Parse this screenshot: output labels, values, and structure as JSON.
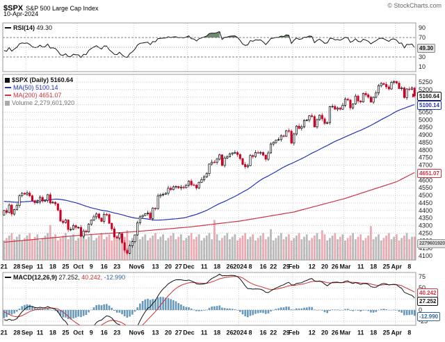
{
  "header": {
    "symbol": "$SPX",
    "name": "S&P 500 Large Cap Index",
    "date": "10-Apr-2024",
    "credit": "© StockCharts.com"
  },
  "rsi_panel": {
    "label": "RSI(14)",
    "value": "49.30",
    "badge": "49.30",
    "axis": [
      90,
      70,
      50,
      30,
      10
    ]
  },
  "main_panel": {
    "legend": {
      "symbol_label": "$SPX (Daily)",
      "symbol_value": "5160.64",
      "ma50_label": "MA(50)",
      "ma50_value": "5100.14",
      "ma200_label": "MA(200)",
      "ma200_value": "4651.07",
      "volume_label": "Volume",
      "volume_value": "2,279,601,920"
    },
    "badges": {
      "close": "5160.64",
      "ma50": "5100.14",
      "ma200": "4651.07",
      "volume": "2279601920"
    },
    "axis": [
      5250,
      5200,
      5150,
      5100,
      5050,
      5000,
      4950,
      4900,
      4850,
      4800,
      4750,
      4700,
      4650,
      4600,
      4550,
      4500,
      4450,
      4400,
      4350,
      4300,
      4250,
      4200,
      4150,
      4100
    ]
  },
  "macd_panel": {
    "label": "MACD(12,26,9)",
    "macd_value": "27.252,",
    "signal_value": "40.242,",
    "hist_value": "-12.990",
    "badges": {
      "signal": "40.242",
      "macd": "27.252",
      "hist": "-12.990"
    },
    "axis": [
      75,
      50,
      25,
      0,
      -25
    ]
  },
  "x_axis": {
    "ticks": [
      {
        "label": "21",
        "i": 0
      },
      {
        "label": "28",
        "i": 5
      },
      {
        "label": "Sep",
        "i": 9,
        "month": true
      },
      {
        "label": "11",
        "i": 14
      },
      {
        "label": "18",
        "i": 19
      },
      {
        "label": "25",
        "i": 24
      },
      {
        "label": "Oct",
        "i": 29,
        "month": true
      },
      {
        "label": "9",
        "i": 34
      },
      {
        "label": "16",
        "i": 39
      },
      {
        "label": "23",
        "i": 44
      },
      {
        "label": "Nov",
        "i": 51,
        "month": true
      },
      {
        "label": "6",
        "i": 54
      },
      {
        "label": "13",
        "i": 59
      },
      {
        "label": "20",
        "i": 64
      },
      {
        "label": "27",
        "i": 68
      },
      {
        "label": "Dec",
        "i": 72,
        "month": true
      },
      {
        "label": "11",
        "i": 78
      },
      {
        "label": "18",
        "i": 83
      },
      {
        "label": "26",
        "i": 88
      },
      {
        "label": "2024",
        "i": 92,
        "month": true
      },
      {
        "label": "8",
        "i": 96
      },
      {
        "label": "16",
        "i": 101
      },
      {
        "label": "22",
        "i": 105
      },
      {
        "label": "29",
        "i": 110
      },
      {
        "label": "Feb",
        "i": 113,
        "month": true
      },
      {
        "label": "12",
        "i": 120
      },
      {
        "label": "20",
        "i": 125
      },
      {
        "label": "26",
        "i": 129
      },
      {
        "label": "Mar",
        "i": 133,
        "month": true
      },
      {
        "label": "11",
        "i": 139
      },
      {
        "label": "18",
        "i": 144
      },
      {
        "label": "25",
        "i": 149
      },
      {
        "label": "Apr",
        "i": 153,
        "month": true
      },
      {
        "label": "8",
        "i": 158
      }
    ]
  },
  "colors": {
    "up": "#000000",
    "down": "#cc0022",
    "ma50": "#2233bb",
    "ma200": "#cc3344",
    "volume_up": "#b3b3b3",
    "volume_down": "#e8a2aa",
    "macd_hist": "#6699bb",
    "macd_line": "#111111",
    "signal_line": "#cc3333",
    "rsi_line": "#111111",
    "rsi_fill": "#557755",
    "grid": "#cccccc"
  },
  "chart_data": {
    "type": "candlestick",
    "symbol": "$SPX",
    "timeframe": "daily",
    "date_range": "21-Aug-2023 to 10-Apr-2024",
    "price_axis_range": [
      4100,
      5250
    ],
    "indicators": {
      "rsi_period": 14,
      "ma_fast": 50,
      "ma_slow": 200,
      "macd_params": [
        12,
        26,
        9
      ]
    },
    "last": {
      "close": 5160.64,
      "ma50": 5100.14,
      "ma200": 4651.07,
      "rsi": 49.3,
      "macd": 27.252,
      "signal": 40.242,
      "hist": -12.99,
      "volume": 2279601920
    },
    "pre_close": [
      4350,
      4365,
      4378,
      4382,
      4396,
      4410,
      4400,
      4388,
      4376,
      4399,
      4409,
      4455,
      4478,
      4473,
      4495,
      4505,
      4510,
      4522,
      4537,
      4556,
      4567,
      4561,
      4576,
      4588,
      4577,
      4576,
      4513,
      4501,
      4478,
      4518,
      4499,
      4468,
      4404,
      4438,
      4370,
      4376,
      4405,
      4370
    ],
    "close": [
      4400,
      4387,
      4436,
      4376,
      4406,
      4433,
      4497,
      4514,
      4508,
      4516,
      4497,
      4465,
      4451,
      4457,
      4487,
      4462,
      4467,
      4505,
      4450,
      4454,
      4444,
      4402,
      4330,
      4320,
      4337,
      4274,
      4275,
      4300,
      4288,
      4288,
      4229,
      4264,
      4258,
      4309,
      4336,
      4358,
      4377,
      4350,
      4328,
      4374,
      4373,
      4315,
      4278,
      4224,
      4217,
      4247,
      4187,
      4137,
      4117,
      4167,
      4194,
      4238,
      4318,
      4358,
      4366,
      4378,
      4383,
      4347,
      4415,
      4412,
      4496,
      4503,
      4508,
      4514,
      4547,
      4538,
      4556,
      4559,
      4550,
      4555,
      4551,
      4568,
      4594,
      4569,
      4567,
      4549,
      4586,
      4604,
      4622,
      4644,
      4707,
      4720,
      4719,
      4740,
      4768,
      4698,
      4747,
      4755,
      4775,
      4781,
      4783,
      4770,
      4743,
      4705,
      4689,
      4697,
      4764,
      4757,
      4783,
      4780,
      4784,
      4766,
      4739,
      4781,
      4840,
      4850,
      4865,
      4869,
      4894,
      4891,
      4928,
      4925,
      4846,
      4906,
      4959,
      4943,
      4954,
      4995,
      4998,
      5027,
      5022,
      4953,
      5001,
      5030,
      5006,
      4976,
      4982,
      5087,
      5089,
      5070,
      5078,
      5070,
      5096,
      5137,
      5131,
      5079,
      5105,
      5157,
      5124,
      5118,
      5175,
      5165,
      5150,
      5117,
      5149,
      5178,
      5225,
      5241,
      5234,
      5218,
      5204,
      5248,
      5254,
      5243,
      5206,
      5211,
      5147,
      5204,
      5202,
      5210,
      5161
    ],
    "volume_billions": [
      1.9,
      2.14,
      2.38,
      2.62,
      2.02,
      2.26,
      2.5,
      1.9,
      2.14,
      2.38,
      2.62,
      2.02,
      2.26,
      2.5,
      1.9,
      2.14,
      2.38,
      2.62,
      3.4,
      2.26,
      2.5,
      1.9,
      2.14,
      2.38,
      2.62,
      2.02,
      2.26,
      2.5,
      1.9,
      2.14,
      2.38,
      2.62,
      2.02,
      2.26,
      2.5,
      1.9,
      2.14,
      2.38,
      2.62,
      2.02,
      2.26,
      2.5,
      1.9,
      2.14,
      2.38,
      2.62,
      2.02,
      2.26,
      2.9,
      1.9,
      2.14,
      2.38,
      2.62,
      2.02,
      2.26,
      2.5,
      1.9,
      2.14,
      2.38,
      2.62,
      2.02,
      2.26,
      2.5,
      1.9,
      2.14,
      2.38,
      2.62,
      2.02,
      2.26,
      2.5,
      1.9,
      2.14,
      2.38,
      2.62,
      2.02,
      2.26,
      2.5,
      1.9,
      2.14,
      2.38,
      2.62,
      2.02,
      3.9,
      2.5,
      1.9,
      2.14,
      2.38,
      2.62,
      2.02,
      2.26,
      2.5,
      1.9,
      2.14,
      2.38,
      2.62,
      2.02,
      2.26,
      2.5,
      1.9,
      2.14,
      2.38,
      2.62,
      2.02,
      2.26,
      3.0,
      1.9,
      2.14,
      2.38,
      2.62,
      2.02,
      2.26,
      2.5,
      1.9,
      2.14,
      2.38,
      2.62,
      2.02,
      2.26,
      2.5,
      1.9,
      2.14,
      2.38,
      2.62,
      2.02,
      2.9,
      2.5,
      1.9,
      2.14,
      2.38,
      2.62,
      2.02,
      2.26,
      2.5,
      1.9,
      2.14,
      2.38,
      2.62,
      2.02,
      2.26,
      2.5,
      1.9,
      2.14,
      2.38,
      3.3,
      2.02,
      2.26,
      2.5,
      1.9,
      2.14,
      2.38,
      2.62,
      2.02,
      2.26,
      2.5,
      1.9,
      2.14,
      2.38,
      2.62,
      2.02,
      2.26,
      2.28
    ],
    "ma200_anchors": [
      [
        0,
        4190
      ],
      [
        29,
        4235
      ],
      [
        51,
        4260
      ],
      [
        72,
        4290
      ],
      [
        92,
        4330
      ],
      [
        113,
        4390
      ],
      [
        133,
        4480
      ],
      [
        153,
        4590
      ],
      [
        160,
        4651
      ]
    ]
  }
}
